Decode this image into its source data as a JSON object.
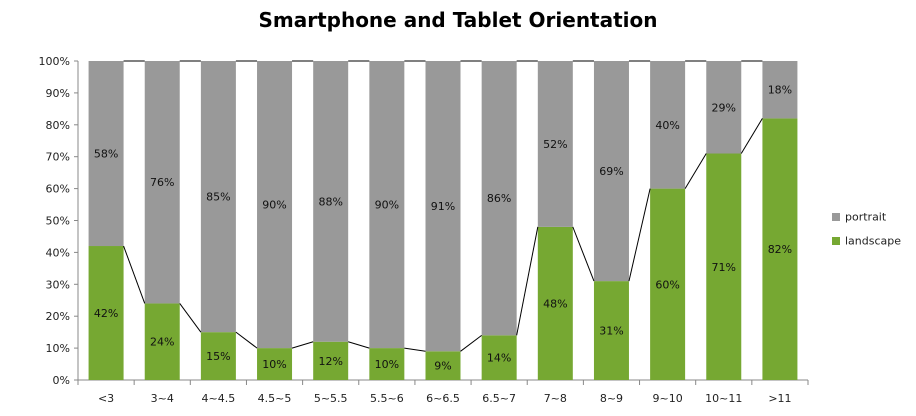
{
  "chart_data": {
    "type": "bar",
    "stacked": true,
    "title": "Smartphone and Tablet Orientation",
    "categories": [
      "<3",
      "3~4",
      "4~4.5",
      "4.5~5",
      "5~5.5",
      "5.5~6",
      "6~6.5",
      "6.5~7",
      "7~8",
      "8~9",
      "9~10",
      "10~11",
      ">11"
    ],
    "series": [
      {
        "name": "landscape",
        "color": "#76a832",
        "values": [
          42,
          24,
          15,
          10,
          12,
          10,
          9,
          14,
          48,
          31,
          60,
          71,
          82
        ],
        "labels": [
          "42%",
          "24%",
          "15%",
          "10%",
          "12%",
          "10%",
          "9%",
          "14%",
          "48%",
          "31%",
          "60%",
          "71%",
          "82%"
        ]
      },
      {
        "name": "portrait",
        "color": "#999999",
        "values": [
          58,
          76,
          85,
          90,
          88,
          90,
          91,
          86,
          52,
          69,
          40,
          29,
          18
        ],
        "labels": [
          "58%",
          "76%",
          "85%",
          "90%",
          "88%",
          "90%",
          "91%",
          "86%",
          "52%",
          "69%",
          "40%",
          "29%",
          "18%"
        ]
      }
    ],
    "yticks": [
      "0%",
      "10%",
      "20%",
      "30%",
      "40%",
      "50%",
      "60%",
      "70%",
      "80%",
      "90%",
      "100%"
    ],
    "ylim": [
      0,
      100
    ],
    "legend_position": "right",
    "grid": false,
    "connector_lines": true
  }
}
